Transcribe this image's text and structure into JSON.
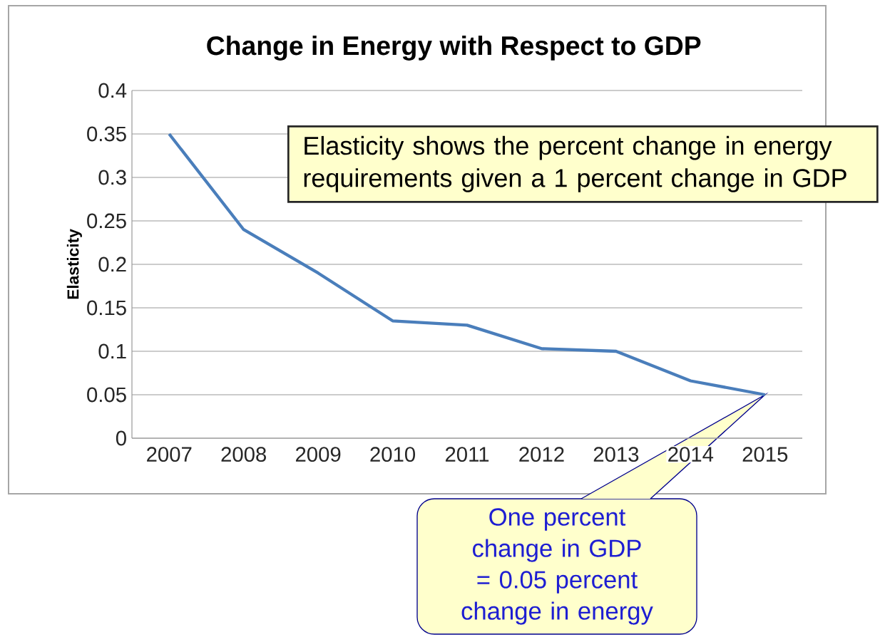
{
  "chart_data": {
    "type": "line",
    "title": "Change in Energy with Respect to GDP",
    "ylabel": "Elasticity",
    "categories": [
      "2007",
      "2008",
      "2009",
      "2010",
      "2011",
      "2012",
      "2013",
      "2014",
      "2015"
    ],
    "series": [
      {
        "color": "#4a7ebb",
        "values": [
          0.35,
          0.24,
          0.19,
          0.135,
          0.13,
          0.103,
          0.1,
          0.066,
          0.05
        ]
      }
    ],
    "ylim": [
      0,
      0.4
    ],
    "yticks": [
      0,
      0.05,
      0.1,
      0.15,
      0.2,
      0.25,
      0.3,
      0.35,
      0.4
    ],
    "grid": "y",
    "marker": "none",
    "line_style": "solid",
    "annotations": [
      "Elasticity shows the percent change in energy requirements given a 1 percent change in GDP",
      "One percent change in GDP = 0.05 percent change in energy"
    ]
  }
}
